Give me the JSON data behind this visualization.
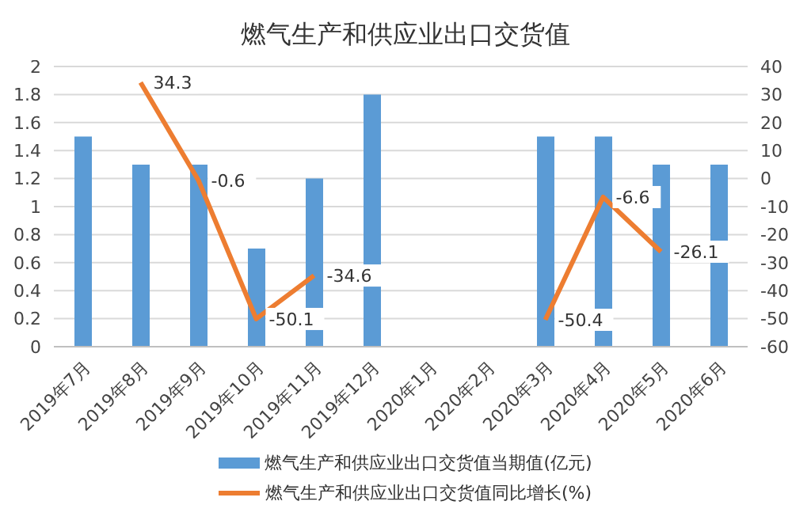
{
  "chart_data": {
    "type": "bar",
    "title": "燃气生产和供应业出口交货值",
    "categories": [
      "2019年7月",
      "2019年8月",
      "2019年9月",
      "2019年10月",
      "2019年11月",
      "2019年12月",
      "2020年1月",
      "2020年2月",
      "2020年3月",
      "2020年4月",
      "2020年5月",
      "2020年6月"
    ],
    "series": [
      {
        "name": "燃气生产和供应业出口交货值当期值(亿元)",
        "color": "#5b9bd5",
        "values": [
          1.5,
          1.3,
          1.3,
          0.7,
          1.2,
          1.8,
          null,
          null,
          1.5,
          1.5,
          1.3,
          1.3
        ]
      },
      {
        "name": "燃气生产和供应业出口交货值同比增长(%)",
        "type": "line",
        "axis": "y2",
        "color": "#ed7d31",
        "values": [
          null,
          34.3,
          -0.6,
          -50.1,
          -34.6,
          null,
          null,
          null,
          -50.4,
          -6.6,
          -26.1,
          null
        ],
        "value_labels": [
          null,
          "34.3",
          "-0.6",
          "-50.1",
          "-34.6",
          null,
          null,
          null,
          "-50.4",
          "-6.6",
          "-26.1",
          null
        ]
      }
    ],
    "ylim": [
      0,
      2
    ],
    "yticks": [
      0,
      0.2,
      0.4,
      0.6,
      0.8,
      1,
      1.2,
      1.4,
      1.6,
      1.8,
      2
    ],
    "y2lim": [
      -60,
      40
    ],
    "y2ticks": [
      -60,
      -50,
      -40,
      -30,
      -20,
      -10,
      0,
      10,
      20,
      30,
      40
    ],
    "grid": "y",
    "legend": "bottom",
    "marker": "none",
    "line_style": "solid"
  }
}
